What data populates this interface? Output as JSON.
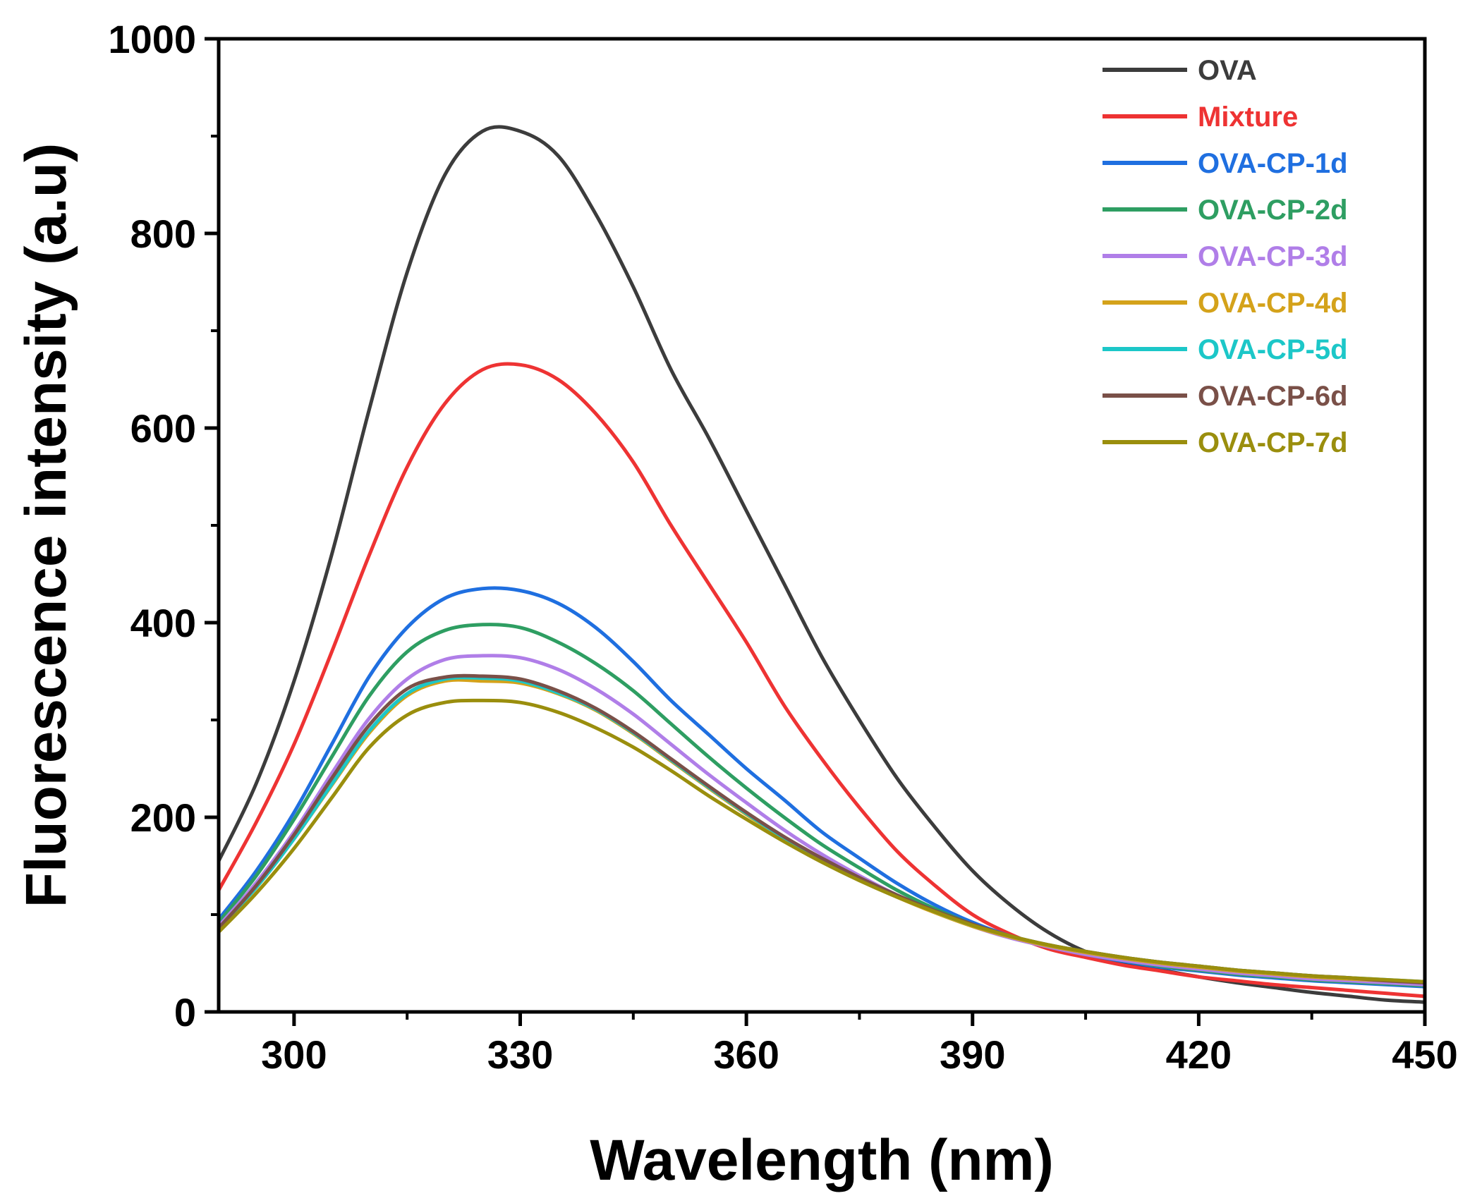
{
  "chart_data": {
    "type": "line",
    "title": "",
    "xlabel": "Wavelength (nm)",
    "ylabel": "Fluorescence intensity (a.u)",
    "xlim": [
      290,
      450
    ],
    "ylim": [
      0,
      1000
    ],
    "xticks": [
      300,
      330,
      360,
      390,
      420,
      450
    ],
    "yticks": [
      0,
      200,
      400,
      600,
      800,
      1000
    ],
    "x_minor_step": 15,
    "y_minor_step": 100,
    "grid": false,
    "legend_position": "top-right",
    "x": [
      290,
      295,
      300,
      305,
      310,
      315,
      320,
      325,
      330,
      335,
      340,
      345,
      350,
      355,
      360,
      365,
      370,
      375,
      380,
      385,
      390,
      395,
      400,
      405,
      410,
      415,
      420,
      425,
      430,
      435,
      440,
      445,
      450
    ],
    "series": [
      {
        "name": "OVA",
        "color": "#3c3c3c",
        "values": [
          155,
          235,
          340,
          470,
          620,
          760,
          860,
          905,
          905,
          880,
          820,
          745,
          660,
          590,
          515,
          440,
          365,
          300,
          240,
          190,
          145,
          110,
          82,
          62,
          50,
          43,
          36,
          30,
          25,
          20,
          16,
          12,
          10
        ]
      },
      {
        "name": "Mixture",
        "color": "#ee3333",
        "values": [
          125,
          195,
          275,
          370,
          470,
          560,
          625,
          660,
          665,
          650,
          615,
          565,
          500,
          440,
          380,
          315,
          260,
          210,
          165,
          130,
          100,
          80,
          65,
          56,
          48,
          42,
          36,
          32,
          28,
          25,
          22,
          19,
          16
        ]
      },
      {
        "name": "OVA-CP-1d",
        "color": "#1f6fe0",
        "values": [
          95,
          145,
          205,
          275,
          345,
          395,
          425,
          435,
          433,
          420,
          395,
          360,
          320,
          285,
          250,
          218,
          185,
          158,
          132,
          110,
          92,
          78,
          67,
          59,
          52,
          46,
          42,
          38,
          35,
          32,
          30,
          28,
          26
        ]
      },
      {
        "name": "OVA-CP-2d",
        "color": "#2e9e62",
        "values": [
          92,
          140,
          198,
          262,
          325,
          370,
          392,
          398,
          395,
          380,
          358,
          330,
          296,
          262,
          230,
          200,
          172,
          148,
          125,
          106,
          90,
          77,
          67,
          59,
          53,
          47,
          43,
          39,
          36,
          33,
          31,
          29,
          27
        ]
      },
      {
        "name": "OVA-CP-3d",
        "color": "#b07ee8",
        "values": [
          88,
          133,
          185,
          245,
          302,
          342,
          362,
          366,
          364,
          352,
          332,
          306,
          275,
          244,
          215,
          187,
          162,
          140,
          120,
          103,
          88,
          76,
          67,
          59,
          53,
          48,
          44,
          40,
          37,
          34,
          32,
          30,
          28
        ]
      },
      {
        "name": "OVA-CP-4d",
        "color": "#d4a21a",
        "values": [
          86,
          128,
          178,
          233,
          287,
          325,
          340,
          340,
          338,
          327,
          310,
          286,
          258,
          230,
          203,
          178,
          156,
          136,
          118,
          102,
          88,
          77,
          68,
          61,
          55,
          50,
          46,
          42,
          39,
          36,
          34,
          32,
          30
        ]
      },
      {
        "name": "OVA-CP-5d",
        "color": "#1cc7c8",
        "values": [
          86,
          128,
          178,
          234,
          289,
          327,
          342,
          343,
          340,
          328,
          311,
          287,
          259,
          231,
          204,
          179,
          157,
          137,
          119,
          103,
          89,
          78,
          69,
          62,
          56,
          51,
          47,
          43,
          40,
          37,
          35,
          33,
          31
        ]
      },
      {
        "name": "OVA-CP-6d",
        "color": "#7a5048",
        "values": [
          86,
          130,
          182,
          240,
          295,
          332,
          344,
          345,
          342,
          330,
          312,
          288,
          260,
          232,
          205,
          180,
          158,
          138,
          120,
          104,
          90,
          78,
          69,
          62,
          56,
          51,
          47,
          43,
          40,
          37,
          35,
          32,
          30
        ]
      },
      {
        "name": "OVA-CP-7d",
        "color": "#9a8e0d",
        "values": [
          82,
          122,
          168,
          220,
          272,
          305,
          318,
          320,
          318,
          308,
          292,
          272,
          248,
          222,
          198,
          175,
          154,
          135,
          118,
          103,
          89,
          78,
          69,
          62,
          56,
          51,
          47,
          43,
          40,
          37,
          35,
          33,
          31
        ]
      }
    ]
  }
}
